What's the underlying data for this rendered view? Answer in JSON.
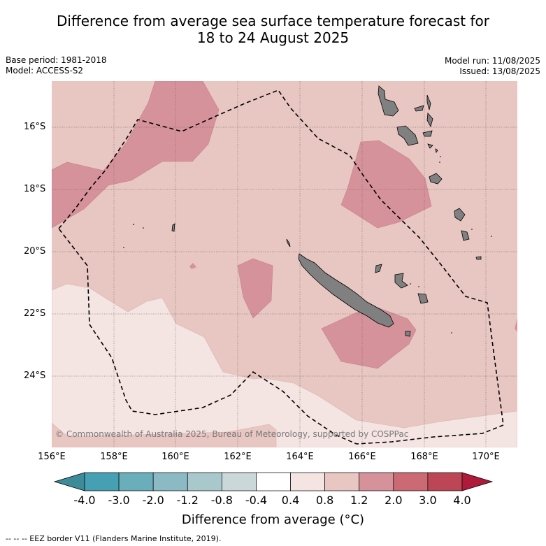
{
  "title_line1": "Difference from average sea surface temperature forecast for",
  "title_line2": "18 to 24 August 2025",
  "base_period": "Base period: 1981-2018",
  "model": "Model: ACCESS-S2",
  "model_run": "Model run: 11/08/2025",
  "issued": "Issued: 13/08/2025",
  "copyright": "© Commonwealth of Australia 2025, Bureau of Meteorology, supported by COSPPac",
  "lat_labels": [
    "16°S",
    "18°S",
    "20°S",
    "22°S",
    "24°S"
  ],
  "lon_labels": [
    "156°E",
    "158°E",
    "160°E",
    "162°E",
    "164°E",
    "166°E",
    "168°E",
    "170°E"
  ],
  "colorbar": {
    "ticks": [
      "-4.0",
      "-3.0",
      "-2.0",
      "-1.2",
      "-0.8",
      "-0.4",
      "0.4",
      "0.8",
      "1.2",
      "2.0",
      "3.0",
      "4.0"
    ],
    "colors": [
      "#44a0b2",
      "#6aaebc",
      "#8bbac4",
      "#a9c8cc",
      "#cbd8da",
      "#ffffff",
      "#f4e4e2",
      "#e8c6c1",
      "#d6929a",
      "#cb6a74",
      "#bd4656"
    ],
    "low_extend_color": "#3d8a99",
    "high_extend_color": "#ad1a3a",
    "label": "Difference from average (°C)"
  },
  "legend_footnote": "--  --  -- EEZ border V11 (Flanders Marine Institute, 2019).",
  "map_colors": {
    "band_0.4_0.8": "#f4e4e2",
    "band_0.8_1.2": "#e8c6c1",
    "band_1.2_2.0": "#d6929a",
    "land": "#808080"
  }
}
